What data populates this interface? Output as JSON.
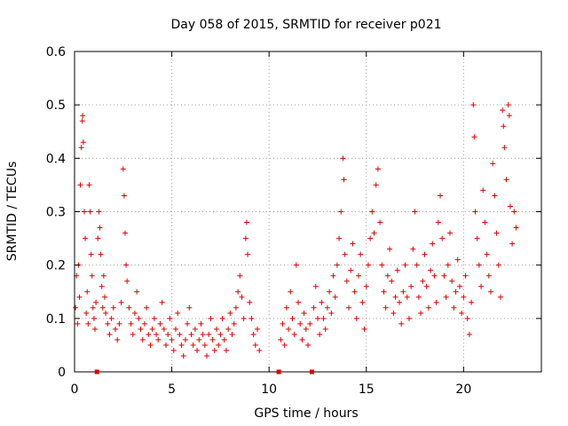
{
  "chart_data": {
    "type": "scatter",
    "title": "Day 058 of 2015, SRMTID for receiver p021",
    "xlabel": "GPS time / hours",
    "ylabel": "SRMTID / TECUs",
    "xlim": [
      0,
      24
    ],
    "ylim": [
      0,
      0.6
    ],
    "x_ticks": [
      0,
      5,
      10,
      15,
      20
    ],
    "x_tick_labels": [
      "0",
      "5",
      "10",
      "15",
      "20"
    ],
    "y_ticks": [
      0,
      0.1,
      0.2,
      0.3,
      0.4,
      0.5,
      0.6
    ],
    "y_tick_labels": [
      "0",
      "0.1",
      "0.2",
      "0.3",
      "0.4",
      "0.5",
      "0.6"
    ],
    "grid": true,
    "marker": "+",
    "series_color": "#e00000",
    "gap_markers_x": [
      1.15,
      10.5,
      12.2
    ],
    "series": [
      {
        "name": "SRMTID",
        "points": [
          [
            0.05,
            0.12
          ],
          [
            0.1,
            0.18
          ],
          [
            0.15,
            0.09
          ],
          [
            0.2,
            0.2
          ],
          [
            0.25,
            0.14
          ],
          [
            0.3,
            0.35
          ],
          [
            0.35,
            0.42
          ],
          [
            0.4,
            0.47
          ],
          [
            0.42,
            0.48
          ],
          [
            0.45,
            0.43
          ],
          [
            0.5,
            0.3
          ],
          [
            0.55,
            0.25
          ],
          [
            0.6,
            0.11
          ],
          [
            0.65,
            0.15
          ],
          [
            0.7,
            0.09
          ],
          [
            0.75,
            0.35
          ],
          [
            0.8,
            0.3
          ],
          [
            0.85,
            0.22
          ],
          [
            0.9,
            0.18
          ],
          [
            0.95,
            0.12
          ],
          [
            1.0,
            0.1
          ],
          [
            1.05,
            0.08
          ],
          [
            1.1,
            0.13
          ],
          [
            1.2,
            0.25
          ],
          [
            1.25,
            0.3
          ],
          [
            1.3,
            0.27
          ],
          [
            1.35,
            0.22
          ],
          [
            1.4,
            0.16
          ],
          [
            1.45,
            0.12
          ],
          [
            1.5,
            0.18
          ],
          [
            1.55,
            0.14
          ],
          [
            1.6,
            0.11
          ],
          [
            1.7,
            0.09
          ],
          [
            1.8,
            0.07
          ],
          [
            1.9,
            0.1
          ],
          [
            2.0,
            0.12
          ],
          [
            2.1,
            0.08
          ],
          [
            2.2,
            0.06
          ],
          [
            2.3,
            0.09
          ],
          [
            2.4,
            0.13
          ],
          [
            2.5,
            0.38
          ],
          [
            2.55,
            0.33
          ],
          [
            2.6,
            0.26
          ],
          [
            2.65,
            0.2
          ],
          [
            2.7,
            0.17
          ],
          [
            2.8,
            0.12
          ],
          [
            2.9,
            0.09
          ],
          [
            3.0,
            0.07
          ],
          [
            3.1,
            0.11
          ],
          [
            3.2,
            0.15
          ],
          [
            3.3,
            0.1
          ],
          [
            3.4,
            0.08
          ],
          [
            3.5,
            0.06
          ],
          [
            3.6,
            0.09
          ],
          [
            3.7,
            0.12
          ],
          [
            3.8,
            0.07
          ],
          [
            3.9,
            0.05
          ],
          [
            4.0,
            0.08
          ],
          [
            4.1,
            0.1
          ],
          [
            4.2,
            0.07
          ],
          [
            4.3,
            0.06
          ],
          [
            4.4,
            0.09
          ],
          [
            4.5,
            0.13
          ],
          [
            4.6,
            0.08
          ],
          [
            4.7,
            0.05
          ],
          [
            4.8,
            0.07
          ],
          [
            4.9,
            0.1
          ],
          [
            5.0,
            0.06
          ],
          [
            5.1,
            0.04
          ],
          [
            5.2,
            0.08
          ],
          [
            5.3,
            0.11
          ],
          [
            5.4,
            0.07
          ],
          [
            5.5,
            0.05
          ],
          [
            5.6,
            0.03
          ],
          [
            5.7,
            0.06
          ],
          [
            5.8,
            0.09
          ],
          [
            5.9,
            0.12
          ],
          [
            6.0,
            0.07
          ],
          [
            6.1,
            0.05
          ],
          [
            6.2,
            0.08
          ],
          [
            6.3,
            0.04
          ],
          [
            6.4,
            0.06
          ],
          [
            6.5,
            0.09
          ],
          [
            6.6,
            0.07
          ],
          [
            6.7,
            0.05
          ],
          [
            6.8,
            0.03
          ],
          [
            6.9,
            0.07
          ],
          [
            7.0,
            0.1
          ],
          [
            7.1,
            0.06
          ],
          [
            7.2,
            0.04
          ],
          [
            7.3,
            0.08
          ],
          [
            7.4,
            0.05
          ],
          [
            7.5,
            0.07
          ],
          [
            7.6,
            0.1
          ],
          [
            7.7,
            0.06
          ],
          [
            7.8,
            0.04
          ],
          [
            7.9,
            0.08
          ],
          [
            8.0,
            0.11
          ],
          [
            8.1,
            0.07
          ],
          [
            8.2,
            0.09
          ],
          [
            8.3,
            0.12
          ],
          [
            8.4,
            0.15
          ],
          [
            8.5,
            0.18
          ],
          [
            8.6,
            0.14
          ],
          [
            8.7,
            0.1
          ],
          [
            8.8,
            0.25
          ],
          [
            8.85,
            0.28
          ],
          [
            8.9,
            0.22
          ],
          [
            9.0,
            0.13
          ],
          [
            9.1,
            0.1
          ],
          [
            9.2,
            0.07
          ],
          [
            9.3,
            0.05
          ],
          [
            9.4,
            0.08
          ],
          [
            9.5,
            0.04
          ],
          [
            10.6,
            0.06
          ],
          [
            10.7,
            0.09
          ],
          [
            10.8,
            0.05
          ],
          [
            10.9,
            0.12
          ],
          [
            11.0,
            0.08
          ],
          [
            11.1,
            0.15
          ],
          [
            11.2,
            0.1
          ],
          [
            11.3,
            0.07
          ],
          [
            11.4,
            0.2
          ],
          [
            11.5,
            0.13
          ],
          [
            11.6,
            0.09
          ],
          [
            11.7,
            0.06
          ],
          [
            11.8,
            0.11
          ],
          [
            11.9,
            0.08
          ],
          [
            12.0,
            0.05
          ],
          [
            12.1,
            0.09
          ],
          [
            12.3,
            0.12
          ],
          [
            12.4,
            0.16
          ],
          [
            12.5,
            0.1
          ],
          [
            12.6,
            0.07
          ],
          [
            12.7,
            0.13
          ],
          [
            12.8,
            0.1
          ],
          [
            12.9,
            0.08
          ],
          [
            13.0,
            0.12
          ],
          [
            13.1,
            0.15
          ],
          [
            13.2,
            0.11
          ],
          [
            13.3,
            0.18
          ],
          [
            13.4,
            0.14
          ],
          [
            13.5,
            0.2
          ],
          [
            13.6,
            0.25
          ],
          [
            13.7,
            0.3
          ],
          [
            13.8,
            0.4
          ],
          [
            13.85,
            0.36
          ],
          [
            13.9,
            0.22
          ],
          [
            14.0,
            0.17
          ],
          [
            14.1,
            0.12
          ],
          [
            14.2,
            0.19
          ],
          [
            14.3,
            0.24
          ],
          [
            14.4,
            0.15
          ],
          [
            14.5,
            0.1
          ],
          [
            14.6,
            0.18
          ],
          [
            14.7,
            0.22
          ],
          [
            14.8,
            0.13
          ],
          [
            14.9,
            0.08
          ],
          [
            15.0,
            0.16
          ],
          [
            15.1,
            0.2
          ],
          [
            15.2,
            0.25
          ],
          [
            15.3,
            0.3
          ],
          [
            15.4,
            0.26
          ],
          [
            15.5,
            0.35
          ],
          [
            15.6,
            0.38
          ],
          [
            15.7,
            0.28
          ],
          [
            15.8,
            0.2
          ],
          [
            15.9,
            0.15
          ],
          [
            16.0,
            0.12
          ],
          [
            16.1,
            0.18
          ],
          [
            16.2,
            0.23
          ],
          [
            16.3,
            0.17
          ],
          [
            16.4,
            0.11
          ],
          [
            16.5,
            0.14
          ],
          [
            16.6,
            0.19
          ],
          [
            16.7,
            0.13
          ],
          [
            16.8,
            0.09
          ],
          [
            16.9,
            0.15
          ],
          [
            17.0,
            0.2
          ],
          [
            17.1,
            0.14
          ],
          [
            17.2,
            0.1
          ],
          [
            17.3,
            0.16
          ],
          [
            17.4,
            0.23
          ],
          [
            17.5,
            0.3
          ],
          [
            17.6,
            0.2
          ],
          [
            17.7,
            0.14
          ],
          [
            17.8,
            0.11
          ],
          [
            17.9,
            0.17
          ],
          [
            18.0,
            0.22
          ],
          [
            18.1,
            0.16
          ],
          [
            18.2,
            0.12
          ],
          [
            18.3,
            0.19
          ],
          [
            18.4,
            0.24
          ],
          [
            18.5,
            0.18
          ],
          [
            18.6,
            0.13
          ],
          [
            18.7,
            0.28
          ],
          [
            18.8,
            0.33
          ],
          [
            18.9,
            0.25
          ],
          [
            19.0,
            0.18
          ],
          [
            19.1,
            0.14
          ],
          [
            19.2,
            0.2
          ],
          [
            19.3,
            0.26
          ],
          [
            19.4,
            0.17
          ],
          [
            19.5,
            0.12
          ],
          [
            19.6,
            0.15
          ],
          [
            19.7,
            0.21
          ],
          [
            19.8,
            0.16
          ],
          [
            19.9,
            0.11
          ],
          [
            20.0,
            0.14
          ],
          [
            20.1,
            0.18
          ],
          [
            20.2,
            0.1
          ],
          [
            20.3,
            0.07
          ],
          [
            20.4,
            0.13
          ],
          [
            20.5,
            0.5
          ],
          [
            20.55,
            0.44
          ],
          [
            20.6,
            0.3
          ],
          [
            20.7,
            0.25
          ],
          [
            20.8,
            0.2
          ],
          [
            20.9,
            0.16
          ],
          [
            21.0,
            0.34
          ],
          [
            21.1,
            0.28
          ],
          [
            21.2,
            0.22
          ],
          [
            21.3,
            0.18
          ],
          [
            21.4,
            0.15
          ],
          [
            21.5,
            0.39
          ],
          [
            21.6,
            0.33
          ],
          [
            21.7,
            0.26
          ],
          [
            21.8,
            0.2
          ],
          [
            21.9,
            0.14
          ],
          [
            22.0,
            0.49
          ],
          [
            22.05,
            0.46
          ],
          [
            22.1,
            0.42
          ],
          [
            22.2,
            0.36
          ],
          [
            22.3,
            0.5
          ],
          [
            22.35,
            0.48
          ],
          [
            22.4,
            0.31
          ],
          [
            22.5,
            0.24
          ],
          [
            22.6,
            0.3
          ],
          [
            22.7,
            0.27
          ]
        ]
      }
    ]
  }
}
